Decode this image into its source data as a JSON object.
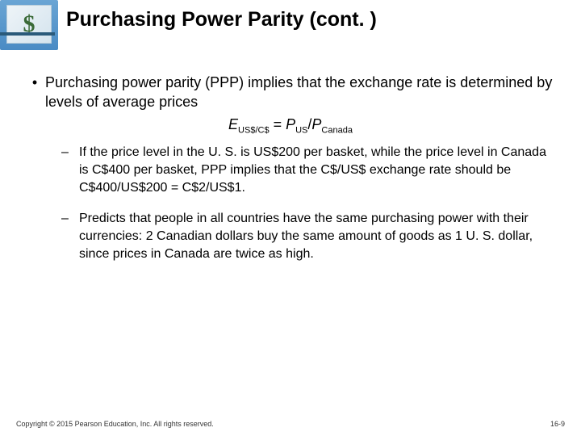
{
  "title": "Purchasing Power Parity (cont. )",
  "bullet1": "Purchasing power parity (PPP) implies that the exchange rate is determined by levels of average prices",
  "equation": {
    "e": "E",
    "e_sub": "US$/C$",
    "eq": " = ",
    "p1": "P",
    "p1_sub": "US",
    "slash": "/",
    "p2": "P",
    "p2_sub": "Canada"
  },
  "sub1": "If the price level in the U. S. is US$200 per basket, while the price level in Canada is C$400 per basket, PPP implies that the C$/US$ exchange rate should be C$400/US$200 = C$2/US$1.",
  "sub2": "Predicts that people in all countries have the same purchasing power with their currencies:  2 Canadian dollars buy the same amount of goods as 1 U. S. dollar, since prices in Canada are twice as high.",
  "copyright": "Copyright © 2015 Pearson Education, Inc. All rights reserved.",
  "pagenum": "16-9"
}
